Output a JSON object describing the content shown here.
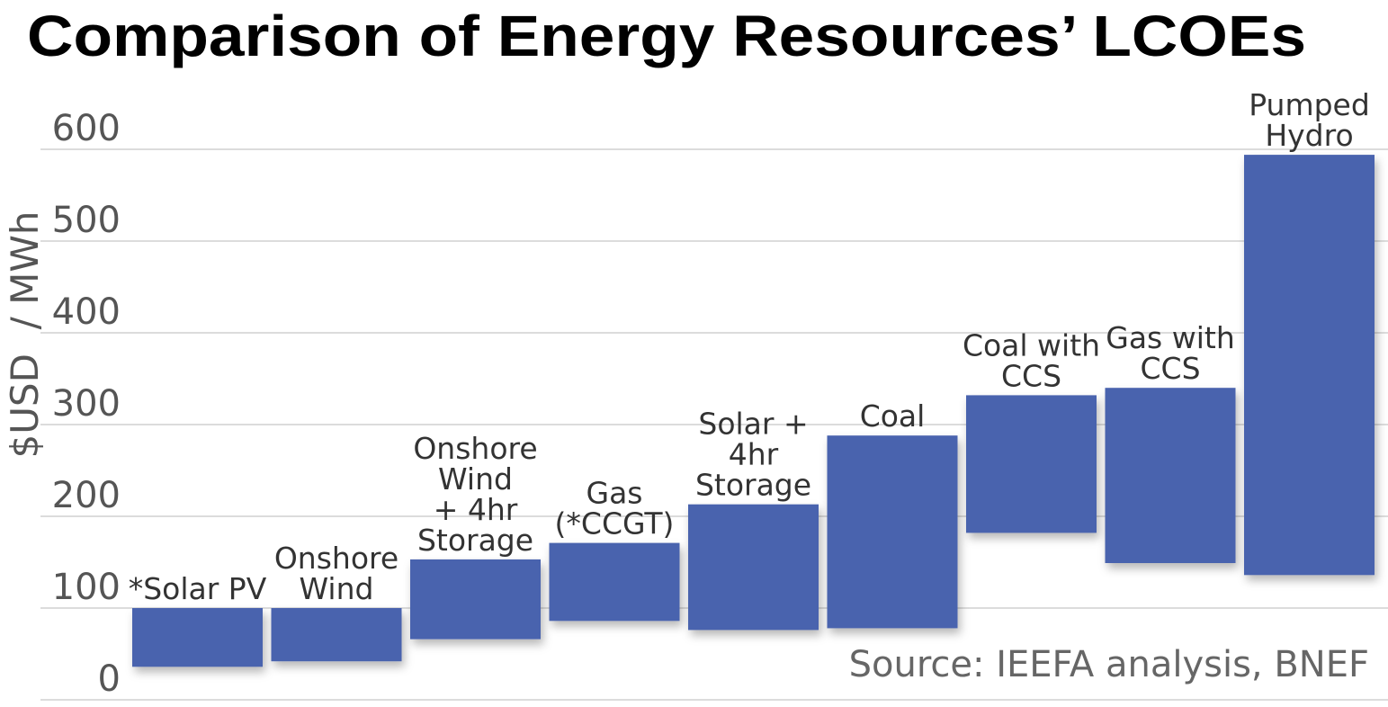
{
  "chart_data": {
    "type": "bar",
    "subtype": "floating-range",
    "title": "Comparison of Energy Resources’ LCOEs",
    "ylabel": "$USD  / MWh",
    "ylim": [
      0,
      600
    ],
    "yticks": [
      "0",
      "100",
      "200",
      "300",
      "400",
      "500",
      "600"
    ],
    "grid": true,
    "source": "Source: IEEFA analysis, BNEF",
    "bar_color": "#4a64ae",
    "categories": [
      "*Solar PV",
      "Onshore Wind",
      "Onshore Wind + 4hr Storage",
      "Gas (*CCGT)",
      "Solar + 4hr Storage",
      "Coal",
      "Coal with CCS",
      "Gas with CCS",
      "Pumped Hydro"
    ],
    "label_lines": [
      [
        "*Solar PV"
      ],
      [
        "Onshore",
        "Wind"
      ],
      [
        "Onshore",
        "Wind",
        "+ 4hr",
        "Storage"
      ],
      [
        "Gas",
        "(*CCGT)"
      ],
      [
        "Solar +",
        "4hr",
        "Storage"
      ],
      [
        "Coal"
      ],
      [
        "Coal with",
        "CCS"
      ],
      [
        "Gas with",
        "CCS"
      ],
      [
        "Pumped",
        "Hydro"
      ]
    ],
    "series": [
      {
        "low": [
          36,
          42,
          66,
          86,
          76,
          78,
          182,
          149,
          136
        ],
        "high": [
          100,
          100,
          153,
          171,
          213,
          288,
          332,
          340,
          594
        ]
      }
    ]
  }
}
